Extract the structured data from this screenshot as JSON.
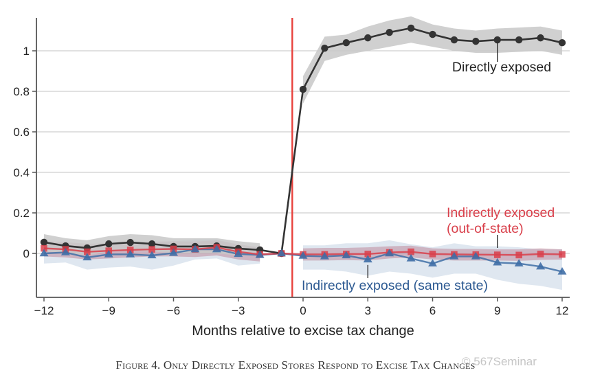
{
  "chart_data": {
    "type": "line",
    "title": "",
    "xlabel": "Months relative to excise tax change",
    "ylabel": "",
    "xlim": [
      -12.5,
      12.4
    ],
    "ylim": [
      -0.217,
      1.16
    ],
    "xticks": [
      -12,
      -9,
      -6,
      -3,
      0,
      3,
      6,
      9,
      12
    ],
    "xtick_labels": [
      "−12",
      "−9",
      "−6",
      "−3",
      "0",
      "3",
      "6",
      "9",
      "12"
    ],
    "yticks": [
      0,
      0.2,
      0.4,
      0.6,
      0.8,
      1
    ],
    "ytick_labels": [
      "0",
      "0.2",
      "0.4",
      "0.6",
      "0.8",
      "1"
    ],
    "grid": "horizontal",
    "vline": {
      "x": -0.5,
      "color": "#e8413c"
    },
    "x": [
      -12,
      -11,
      -10,
      -9,
      -8,
      -7,
      -6,
      -5,
      -4,
      -3,
      -2,
      -1,
      0,
      1,
      2,
      3,
      4,
      5,
      6,
      7,
      8,
      9,
      10,
      11,
      12
    ],
    "series": [
      {
        "name": "Directly exposed",
        "label_lines": [
          "Directly exposed"
        ],
        "marker": "circle",
        "color": "#333333",
        "band_color": "#c8c8c8",
        "values": [
          0.055,
          0.037,
          0.027,
          0.047,
          0.054,
          0.047,
          0.034,
          0.034,
          0.037,
          0.024,
          0.017,
          0,
          0.81,
          1.013,
          1.04,
          1.064,
          1.091,
          1.112,
          1.081,
          1.054,
          1.047,
          1.054,
          1.054,
          1.064,
          1.04
        ],
        "ci_low": [
          0.01,
          0.0,
          -0.01,
          0.01,
          0.015,
          0.01,
          0.0,
          0.0,
          0.0,
          -0.01,
          -0.01,
          0,
          0.74,
          0.95,
          0.98,
          1.0,
          1.02,
          1.04,
          1.02,
          1.0,
          0.99,
          0.99,
          0.995,
          1.0,
          0.98
        ],
        "ci_high": [
          0.095,
          0.075,
          0.065,
          0.085,
          0.095,
          0.09,
          0.075,
          0.075,
          0.075,
          0.06,
          0.05,
          0,
          0.875,
          1.07,
          1.08,
          1.12,
          1.15,
          1.17,
          1.13,
          1.11,
          1.1,
          1.11,
          1.115,
          1.12,
          1.1
        ]
      },
      {
        "name": "Indirectly exposed (out-of-state)",
        "label_lines": [
          "Indirectly exposed",
          "(out-of-state)"
        ],
        "marker": "square",
        "color": "#d9404b",
        "band_color": "#b9768a",
        "values": [
          0.025,
          0.02,
          0.008,
          0.013,
          0.017,
          0.02,
          0.022,
          0.02,
          0.03,
          0.008,
          -0.005,
          0,
          -0.005,
          -0.005,
          -0.003,
          -0.003,
          0.005,
          0.008,
          -0.003,
          -0.005,
          -0.006,
          -0.007,
          -0.008,
          -0.003,
          -0.005
        ],
        "ci_low": [
          -0.015,
          -0.02,
          -0.03,
          -0.025,
          -0.02,
          -0.015,
          -0.015,
          -0.018,
          -0.01,
          -0.03,
          -0.04,
          0,
          -0.035,
          -0.035,
          -0.033,
          -0.035,
          -0.025,
          -0.02,
          -0.03,
          -0.035,
          -0.035,
          -0.035,
          -0.037,
          -0.032,
          -0.03
        ],
        "ci_high": [
          0.06,
          0.055,
          0.048,
          0.05,
          0.055,
          0.058,
          0.06,
          0.058,
          0.065,
          0.045,
          0.03,
          0,
          0.025,
          0.027,
          0.027,
          0.03,
          0.035,
          0.038,
          0.025,
          0.022,
          0.022,
          0.02,
          0.02,
          0.025,
          0.02
        ]
      },
      {
        "name": "Indirectly exposed (same state)",
        "label_lines": [
          "Indirectly exposed (same state)"
        ],
        "marker": "triangle",
        "color": "#3f6ea6",
        "band_color": "#c5d3e3",
        "values": [
          0.0,
          0.005,
          -0.02,
          -0.005,
          -0.005,
          -0.01,
          0.002,
          0.02,
          0.02,
          -0.003,
          -0.008,
          0,
          -0.012,
          -0.015,
          -0.01,
          -0.03,
          0.0,
          -0.025,
          -0.05,
          -0.015,
          -0.015,
          -0.045,
          -0.05,
          -0.065,
          -0.09
        ],
        "ci_low": [
          -0.05,
          -0.045,
          -0.08,
          -0.07,
          -0.065,
          -0.08,
          -0.06,
          -0.03,
          -0.025,
          -0.06,
          -0.05,
          0,
          -0.08,
          -0.08,
          -0.09,
          -0.11,
          -0.09,
          -0.1,
          -0.12,
          -0.1,
          -0.1,
          -0.13,
          -0.15,
          -0.16,
          -0.18
        ],
        "ci_high": [
          0.04,
          0.045,
          0.03,
          0.045,
          0.04,
          0.05,
          0.06,
          0.07,
          0.07,
          0.04,
          0.03,
          0,
          0.04,
          0.04,
          0.05,
          0.05,
          0.065,
          0.045,
          0.03,
          0.05,
          0.035,
          0.035,
          0.03,
          0.02,
          0.02
        ]
      }
    ]
  },
  "caption": "Figure 4. Only Directly Exposed Stores Respond to Excise Tax Changes",
  "watermark": "© 567Seminar"
}
